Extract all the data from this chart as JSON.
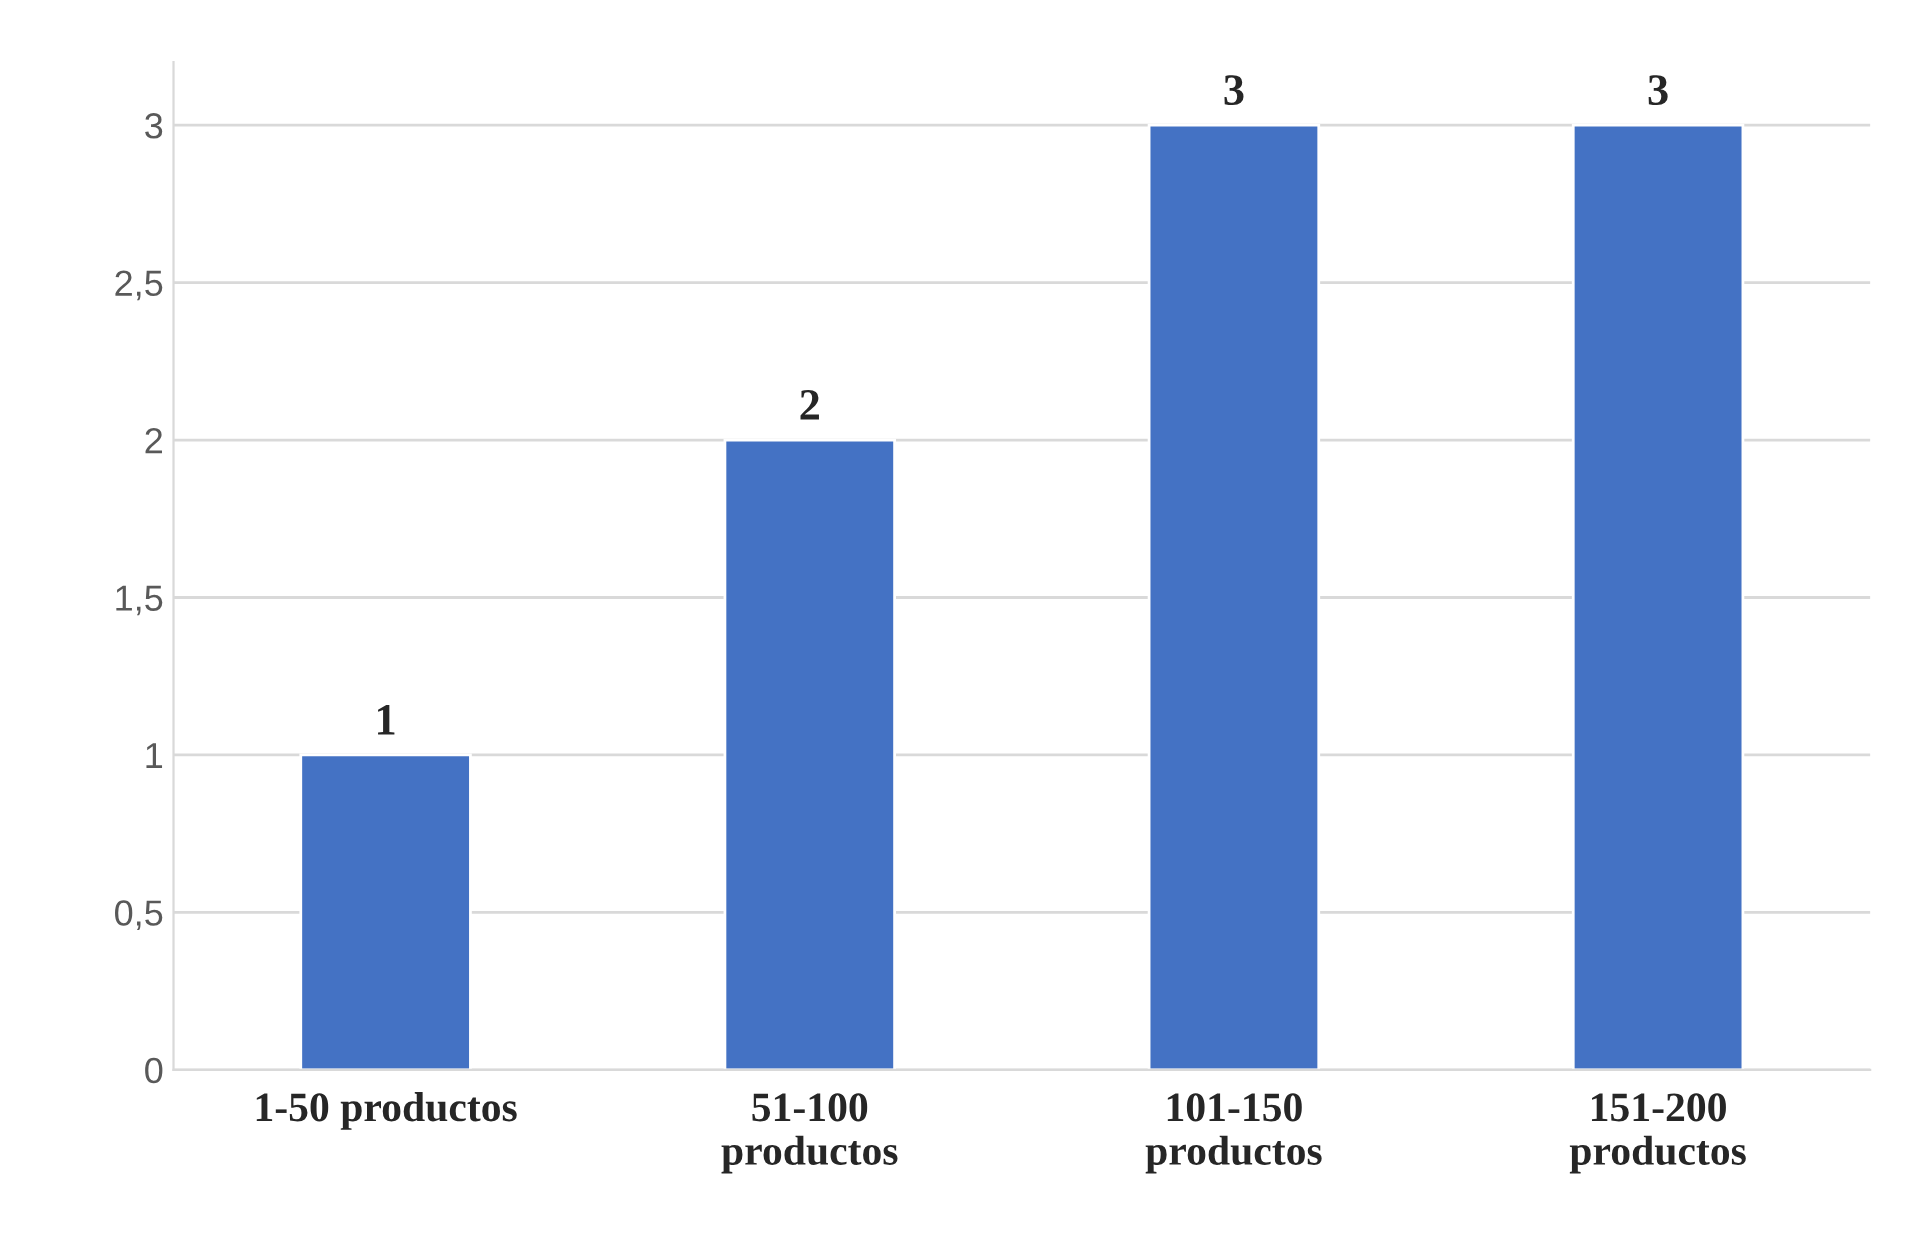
{
  "chart_data": {
    "type": "bar",
    "categories": [
      "1-50 productos",
      "51-100 productos",
      "101-150 productos",
      "151-200 productos"
    ],
    "values": [
      1,
      2,
      3,
      3
    ],
    "color": "#4472c4",
    "ylim": [
      0,
      3.2
    ],
    "yticks": [
      0,
      {
        "value": 0.5,
        "label": "0,5"
      },
      1,
      {
        "value": 1.5,
        "label": "1,5"
      },
      2,
      {
        "value": 2.5,
        "label": "2,5"
      },
      3
    ],
    "grid": "y",
    "data_labels": true
  }
}
